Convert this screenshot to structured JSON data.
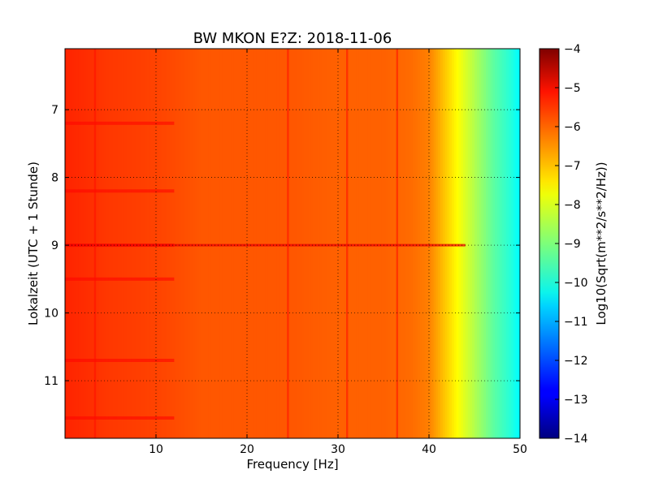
{
  "chart_data": {
    "type": "heatmap",
    "title": "BW MKON E?Z: 2018-11-06",
    "xlabel": "Frequency [Hz]",
    "ylabel": "Lokalzeit (UTC + 1 Stunde)",
    "xlim": [
      0,
      50
    ],
    "ylim": [
      6.1,
      11.85
    ],
    "y_inverted": true,
    "x_ticks": [
      10,
      20,
      30,
      40,
      50
    ],
    "x_tick_labels": [
      "10",
      "20",
      "30",
      "40",
      "50"
    ],
    "y_ticks": [
      7,
      8,
      9,
      10,
      11
    ],
    "y_tick_labels": [
      "7",
      "8",
      "9",
      "10",
      "11"
    ],
    "grid": "dotted",
    "colormap": "jet",
    "colorbar": {
      "label": "Log10(Sqrt(m**2/s**2/Hz))",
      "range": [
        -14,
        -4
      ],
      "ticks": [
        -4,
        -5,
        -6,
        -7,
        -8,
        -9,
        -10,
        -11,
        -12,
        -13,
        -14
      ],
      "tick_labels": [
        "−4",
        "−5",
        "−6",
        "−7",
        "−8",
        "−9",
        "−10",
        "−11",
        "−12",
        "−13",
        "−14"
      ]
    },
    "profile_frequency_hz": [
      0,
      5,
      10,
      15,
      20,
      25,
      30,
      35,
      38,
      40,
      41,
      42,
      43,
      44,
      45,
      46,
      47,
      48,
      49,
      50
    ],
    "profile_log10_amplitude": [
      -5.6,
      -5.8,
      -5.9,
      -6.1,
      -6.1,
      -6.1,
      -6.2,
      -6.2,
      -6.3,
      -6.5,
      -6.9,
      -7.3,
      -7.7,
      -8.1,
      -8.5,
      -8.9,
      -9.3,
      -9.6,
      -9.9,
      -10.3
    ],
    "spectral_lines_hz": [
      3.3,
      24.5,
      31,
      36.5
    ],
    "strong_rows_time": [
      7.2,
      8.2,
      9.0,
      9.5,
      10.7,
      11.55
    ],
    "colors": {
      "frame": "#000000",
      "background": "#ffffff"
    }
  }
}
